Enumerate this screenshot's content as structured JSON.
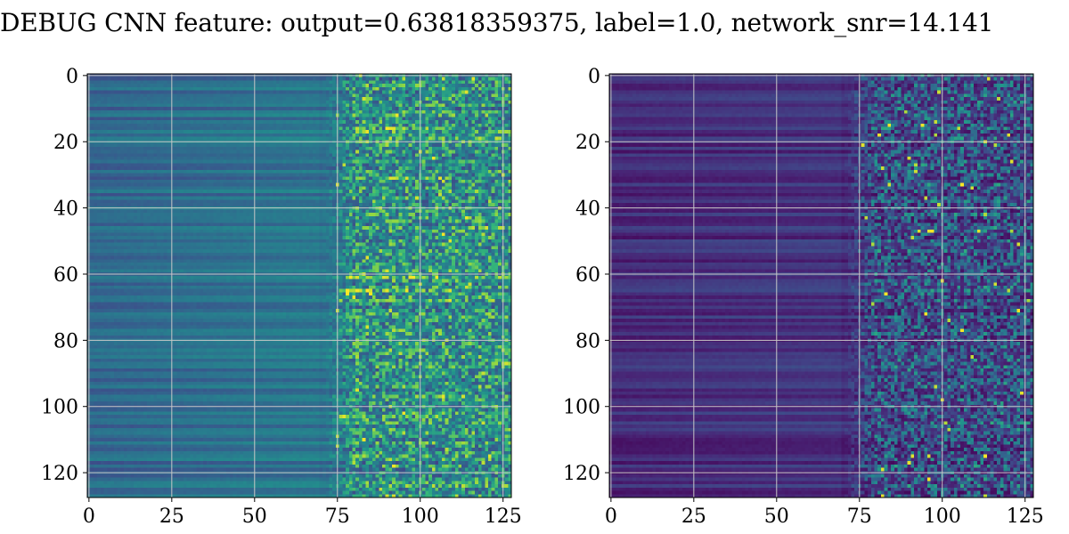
{
  "figure": {
    "title": "DEBUG CNN feature: output=0.63818359375, label=1.0, network_snr=14.141"
  },
  "chart_data": [
    {
      "type": "heatmap",
      "name": "left-panel",
      "rows": 128,
      "cols": 128,
      "xlim": [
        0,
        127
      ],
      "ylim": [
        127,
        0
      ],
      "xticks": [
        0,
        25,
        50,
        75,
        100,
        125
      ],
      "yticks": [
        0,
        20,
        40,
        60,
        80,
        100,
        120
      ],
      "grid": true,
      "colormap": "viridis",
      "noise_onset_col": 70,
      "hot_rows": [
        16,
        31,
        61,
        65,
        68,
        103
      ]
    },
    {
      "type": "heatmap",
      "name": "right-panel",
      "rows": 128,
      "cols": 128,
      "xlim": [
        0,
        127
      ],
      "ylim": [
        127,
        0
      ],
      "xticks": [
        0,
        25,
        50,
        75,
        100,
        125
      ],
      "yticks": [
        0,
        20,
        40,
        60,
        80,
        100,
        120
      ],
      "grid": true,
      "colormap": "viridis",
      "noise_onset_col": 70,
      "hot_rows": [
        15,
        47,
        98,
        115
      ]
    }
  ]
}
